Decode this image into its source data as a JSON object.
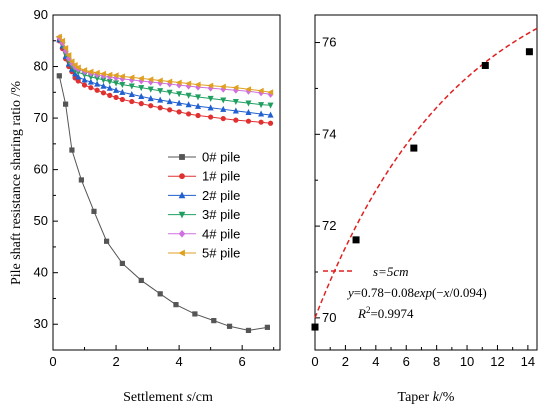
{
  "chart_data": [
    {
      "type": "line",
      "xlabel_prefix": "Settlement ",
      "xlabel_var": "s",
      "xlabel_suffix": "/cm",
      "ylabel": "Pile shaft resistance sharing ratio /%",
      "xlim": [
        0,
        7.2
      ],
      "ylim": [
        25,
        90
      ],
      "xticks": [
        0,
        2,
        4,
        6
      ],
      "yticks": [
        30,
        40,
        50,
        60,
        70,
        80,
        90
      ],
      "legend": "center-right",
      "series": [
        {
          "name": "0# pile",
          "color": "#555555",
          "marker": "square",
          "x": [
            0.2,
            0.4,
            0.6,
            0.9,
            1.3,
            1.7,
            2.2,
            2.8,
            3.4,
            3.9,
            4.5,
            5.1,
            5.6,
            6.2,
            6.8
          ],
          "y": [
            78.2,
            72.7,
            63.8,
            58.0,
            51.9,
            46.1,
            41.8,
            38.5,
            35.9,
            33.8,
            32.0,
            30.7,
            29.6,
            28.8,
            29.4
          ]
        },
        {
          "name": "1# pile",
          "color": "#e03030",
          "marker": "circle",
          "x": [
            0.2,
            0.3,
            0.4,
            0.5,
            0.6,
            0.7,
            0.8,
            1.0,
            1.2,
            1.4,
            1.6,
            1.8,
            2.0,
            2.2,
            2.5,
            2.8,
            3.1,
            3.4,
            3.7,
            4.0,
            4.3,
            4.6,
            5.0,
            5.4,
            5.8,
            6.2,
            6.6,
            6.9
          ],
          "y": [
            85.0,
            83.5,
            81.5,
            80.0,
            79.0,
            77.8,
            77.2,
            76.4,
            75.9,
            75.4,
            74.9,
            74.4,
            74.0,
            73.6,
            73.2,
            72.8,
            72.4,
            72.0,
            71.6,
            71.2,
            70.8,
            70.5,
            70.2,
            69.9,
            69.6,
            69.4,
            69.2,
            69.0
          ]
        },
        {
          "name": "2# pile",
          "color": "#2060d0",
          "marker": "triangle",
          "x": [
            0.2,
            0.3,
            0.4,
            0.5,
            0.6,
            0.7,
            0.8,
            1.0,
            1.2,
            1.4,
            1.6,
            1.8,
            2.0,
            2.2,
            2.5,
            2.8,
            3.1,
            3.4,
            3.7,
            4.0,
            4.3,
            4.6,
            5.0,
            5.4,
            5.8,
            6.2,
            6.6,
            6.9
          ],
          "y": [
            85.2,
            84.0,
            82.0,
            80.5,
            79.5,
            78.6,
            78.0,
            77.4,
            77.0,
            76.6,
            76.2,
            75.8,
            75.4,
            75.0,
            74.6,
            74.2,
            73.8,
            73.5,
            73.2,
            72.9,
            72.6,
            72.3,
            72.0,
            71.7,
            71.4,
            71.1,
            70.8,
            70.6
          ]
        },
        {
          "name": "3# pile",
          "color": "#20a060",
          "marker": "triangle-down",
          "x": [
            0.2,
            0.3,
            0.4,
            0.5,
            0.6,
            0.7,
            0.8,
            1.0,
            1.2,
            1.4,
            1.6,
            1.8,
            2.0,
            2.2,
            2.5,
            2.8,
            3.1,
            3.4,
            3.7,
            4.0,
            4.3,
            4.6,
            5.0,
            5.4,
            5.8,
            6.2,
            6.6,
            6.9
          ],
          "y": [
            85.4,
            84.2,
            82.4,
            81.0,
            80.0,
            79.3,
            78.9,
            78.4,
            78.0,
            77.7,
            77.4,
            77.1,
            76.8,
            76.5,
            76.2,
            75.9,
            75.6,
            75.3,
            75.0,
            74.7,
            74.4,
            74.1,
            73.8,
            73.5,
            73.2,
            72.9,
            72.6,
            72.5
          ]
        },
        {
          "name": "4# pile",
          "color": "#d070e0",
          "marker": "diamond",
          "x": [
            0.2,
            0.3,
            0.4,
            0.5,
            0.6,
            0.7,
            0.8,
            1.0,
            1.2,
            1.4,
            1.6,
            1.8,
            2.0,
            2.2,
            2.5,
            2.8,
            3.1,
            3.4,
            3.7,
            4.0,
            4.3,
            4.6,
            5.0,
            5.4,
            5.8,
            6.2,
            6.6,
            6.9
          ],
          "y": [
            85.6,
            84.6,
            83.0,
            81.6,
            80.6,
            79.9,
            79.5,
            79.0,
            78.7,
            78.4,
            78.2,
            78.0,
            77.8,
            77.6,
            77.4,
            77.2,
            77.0,
            76.8,
            76.6,
            76.4,
            76.2,
            76.0,
            75.8,
            75.6,
            75.4,
            75.2,
            74.9,
            74.6
          ]
        },
        {
          "name": "5# pile",
          "color": "#e0a020",
          "marker": "left-triangle",
          "x": [
            0.2,
            0.3,
            0.4,
            0.5,
            0.6,
            0.7,
            0.8,
            1.0,
            1.2,
            1.4,
            1.6,
            1.8,
            2.0,
            2.2,
            2.5,
            2.8,
            3.1,
            3.4,
            3.7,
            4.0,
            4.3,
            4.6,
            5.0,
            5.4,
            5.8,
            6.2,
            6.6,
            6.9
          ],
          "y": [
            85.8,
            85.0,
            83.6,
            82.2,
            81.0,
            80.3,
            79.8,
            79.3,
            79.0,
            78.8,
            78.6,
            78.4,
            78.3,
            78.1,
            77.9,
            77.7,
            77.5,
            77.3,
            77.1,
            76.9,
            76.7,
            76.5,
            76.3,
            76.1,
            75.9,
            75.6,
            75.3,
            75.0
          ]
        }
      ]
    },
    {
      "type": "scatter",
      "xlabel_prefix": "Taper ",
      "xlabel_var": "k",
      "xlabel_suffix": "/%",
      "ylabel": "",
      "xlim": [
        0,
        14.6
      ],
      "ylim": [
        69.3,
        76.6
      ],
      "xticks": [
        0,
        2,
        4,
        6,
        8,
        10,
        12,
        14
      ],
      "yticks": [
        70,
        72,
        74,
        76
      ],
      "points": {
        "x": [
          0,
          2.7,
          6.5,
          11.2,
          14.1
        ],
        "y": [
          69.8,
          71.7,
          73.7,
          75.5,
          75.8
        ],
        "color": "#000000"
      },
      "fit": {
        "color": "#e02020",
        "a": 78,
        "b": 8,
        "c": 9.4,
        "x_range": [
          0,
          14.6
        ],
        "legend_label": "s=5cm",
        "eq_y": "y",
        "eq_mid": "=0.78−0.08",
        "eq_exp": "exp",
        "eq_open": "(−",
        "eq_x": "x",
        "eq_close": "/0.094)",
        "r2_var": "R",
        "r2_sup": "2",
        "r2_val": "=0.9974"
      }
    }
  ]
}
